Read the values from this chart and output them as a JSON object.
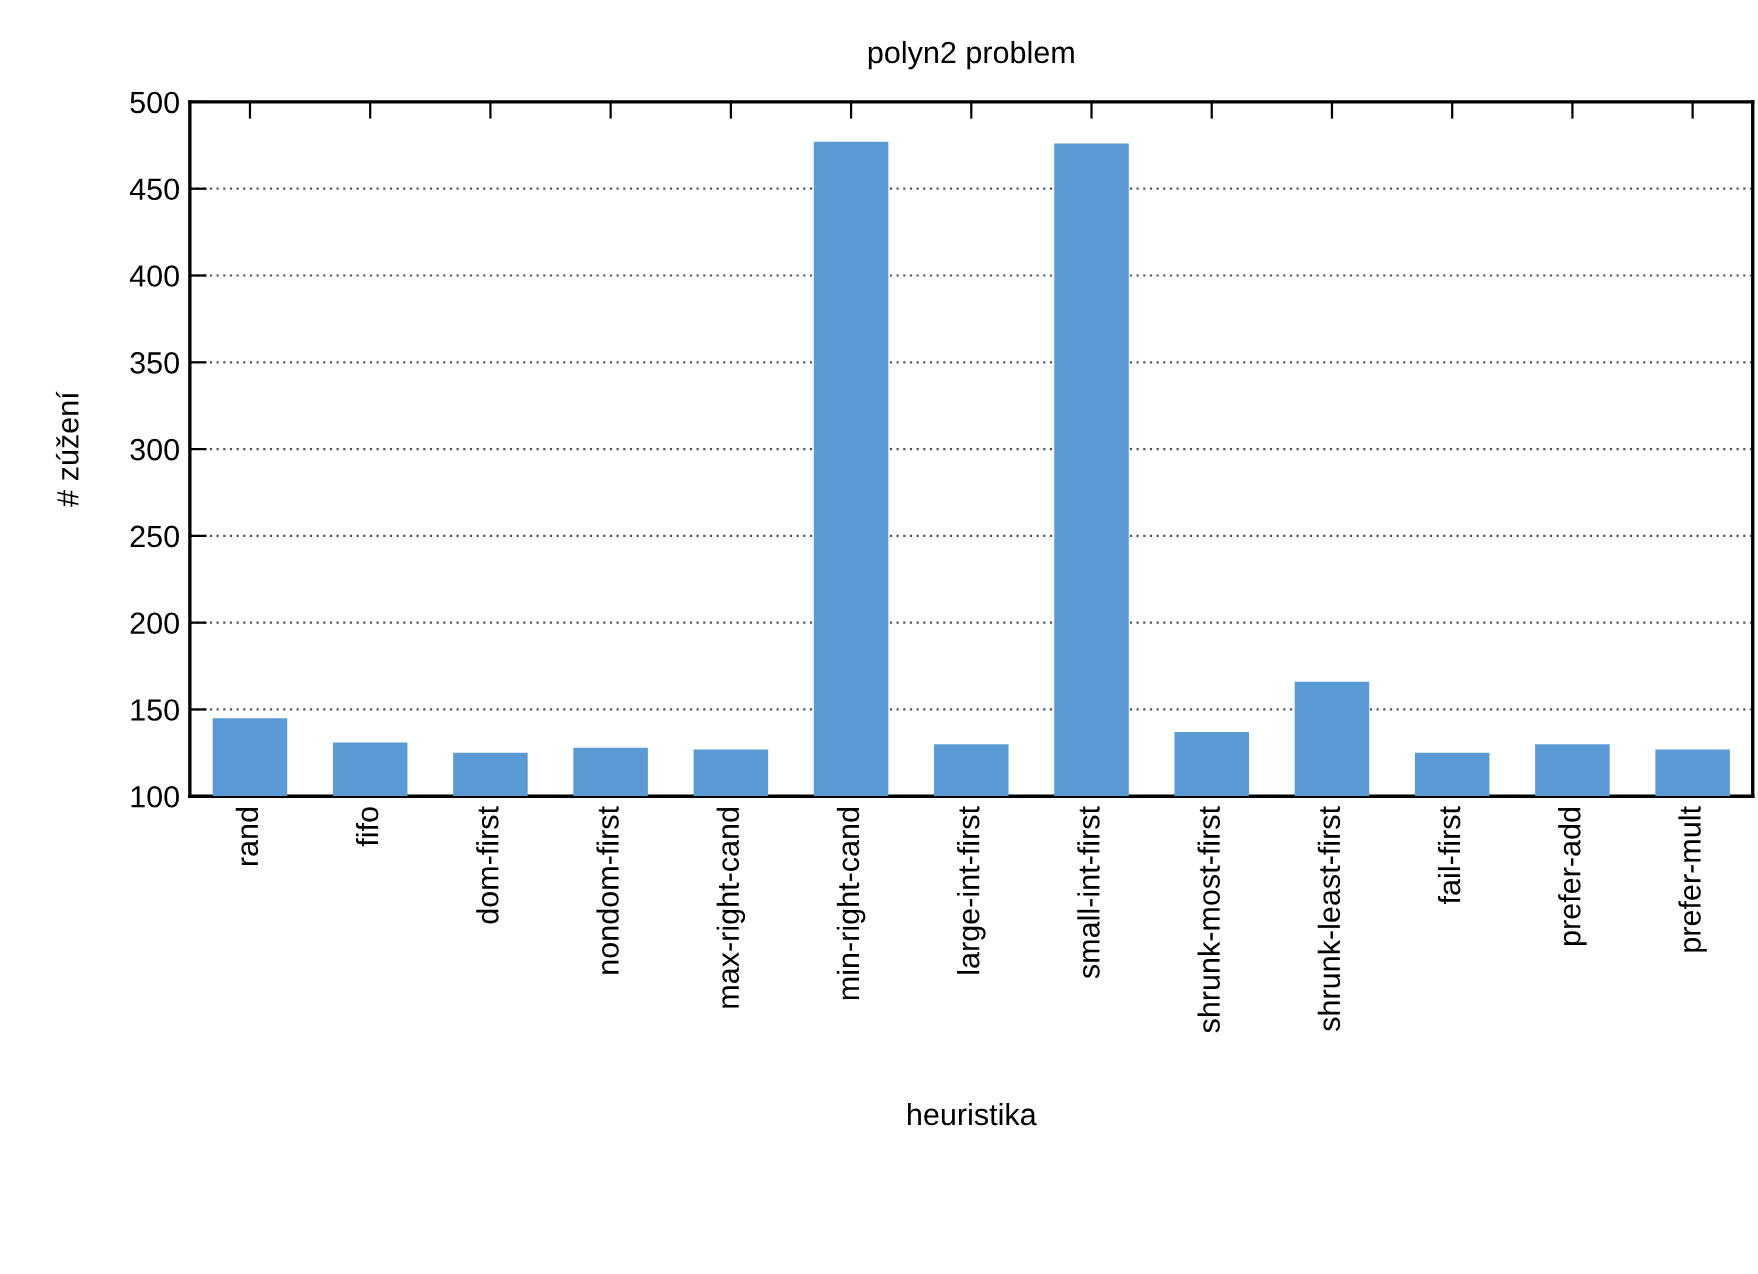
{
  "chart_data": {
    "type": "bar",
    "title": "polyn2 problem",
    "xlabel": "heuristika",
    "ylabel": "# zúžení",
    "categories": [
      "rand",
      "fifo",
      "dom-first",
      "nondom-first",
      "max-right-cand",
      "min-right-cand",
      "large-int-first",
      "small-int-first",
      "shrunk-most-first",
      "shrunk-least-first",
      "fail-first",
      "prefer-add",
      "prefer-mult"
    ],
    "values": [
      145,
      131,
      125,
      128,
      127,
      477,
      130,
      476,
      137,
      166,
      125,
      130,
      127
    ],
    "color": "#5b9bd5",
    "ylim": [
      100,
      500
    ],
    "yticks": [
      100,
      150,
      200,
      250,
      300,
      350,
      400,
      450,
      500
    ],
    "grid": "y"
  }
}
